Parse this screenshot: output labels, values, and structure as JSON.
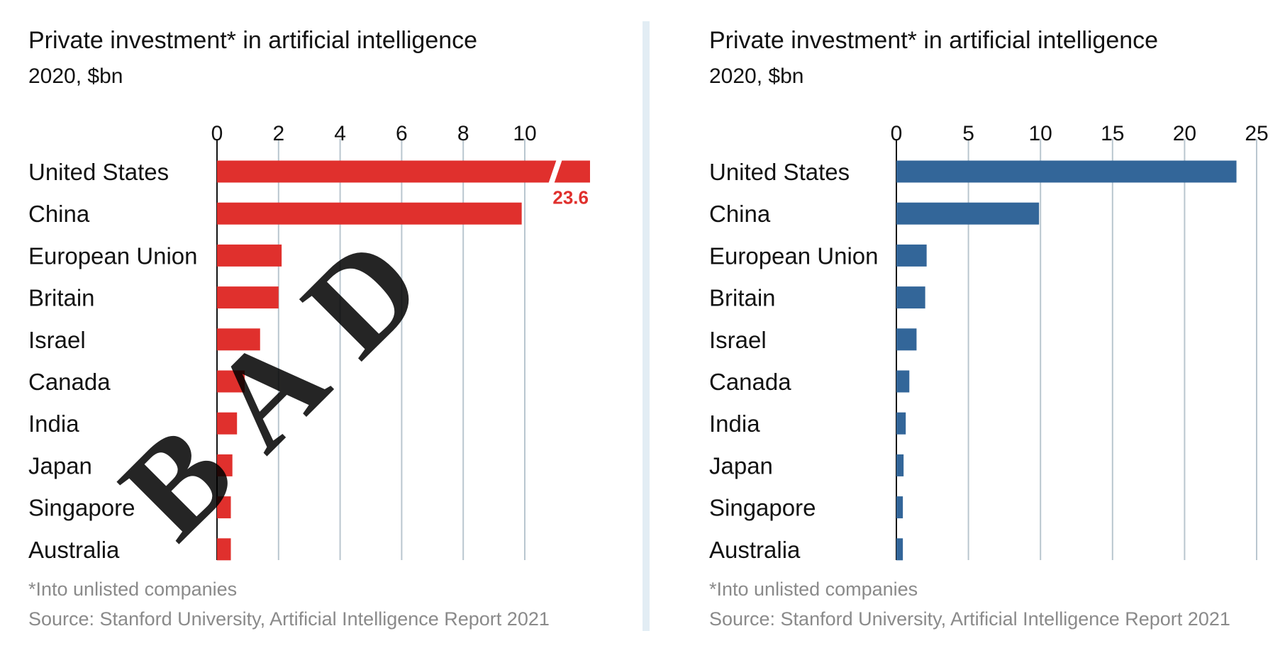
{
  "chart_data": [
    {
      "type": "bar",
      "orientation": "horizontal",
      "title": "Private investment* in artificial intelligence",
      "subtitle": "2020, $bn",
      "categories": [
        "United States",
        "China",
        "European Union",
        "Britain",
        "Israel",
        "Canada",
        "India",
        "Japan",
        "Singapore",
        "Australia"
      ],
      "values": [
        23.6,
        9.9,
        2.1,
        2.0,
        1.4,
        0.9,
        0.65,
        0.5,
        0.45,
        0.45
      ],
      "xlim": [
        0,
        12
      ],
      "xticks": [
        "0",
        "2",
        "4",
        "6",
        "8",
        "10"
      ],
      "axis_break": true,
      "break_label": "23.6",
      "bar_color": "#e0302d",
      "footnote": "*Into unlisted companies",
      "source": "Source: Stanford University, Artificial Intelligence Report 2021",
      "watermark": "BAD",
      "watermark_color": "#c9dde8",
      "grid": true
    },
    {
      "type": "bar",
      "orientation": "horizontal",
      "title": "Private investment* in artificial intelligence",
      "subtitle": "2020, $bn",
      "categories": [
        "United States",
        "China",
        "European Union",
        "Britain",
        "Israel",
        "Canada",
        "India",
        "Japan",
        "Singapore",
        "Australia"
      ],
      "values": [
        23.6,
        9.9,
        2.1,
        2.0,
        1.4,
        0.9,
        0.65,
        0.5,
        0.45,
        0.45
      ],
      "xlim": [
        0,
        25
      ],
      "xticks": [
        "0",
        "5",
        "10",
        "15",
        "20",
        "25"
      ],
      "bar_color": "#336699",
      "footnote": "*Into unlisted companies",
      "source": "Source: Stanford University, Artificial Intelligence Report 2021",
      "grid": true
    }
  ]
}
